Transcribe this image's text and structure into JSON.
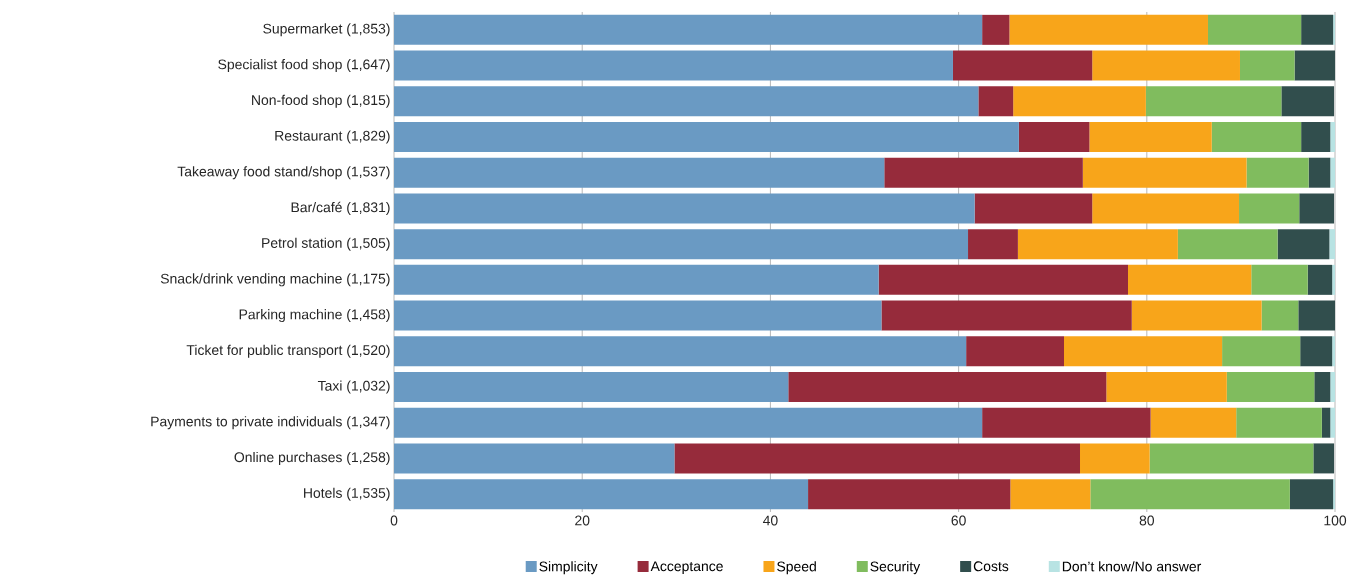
{
  "chart_data": {
    "type": "bar",
    "orientation": "horizontal",
    "stacked": true,
    "categories": [
      "Supermarket (1,853)",
      "Specialist food shop (1,647)",
      "Non-food shop (1,815)",
      "Restaurant (1,829)",
      "Takeaway food stand/shop (1,537)",
      "Bar/café (1,831)",
      "Petrol station (1,505)",
      "Snack/drink vending machine (1,175)",
      "Parking machine (1,458)",
      "Ticket for public transport (1,520)",
      "Taxi (1,032)",
      "Payments to private individuals (1,347)",
      "Online purchases (1,258)",
      "Hotels (1,535)"
    ],
    "series": [
      {
        "name": "Simplicity",
        "color": "#6a9ac3",
        "values": [
          62.5,
          59.4,
          62.1,
          66.4,
          52.1,
          61.7,
          61.0,
          51.5,
          51.8,
          60.8,
          41.9,
          62.5,
          29.8,
          44.0
        ]
      },
      {
        "name": "Acceptance",
        "color": "#962b3b",
        "values": [
          2.9,
          14.8,
          3.7,
          7.5,
          21.1,
          12.5,
          5.3,
          26.5,
          26.6,
          10.4,
          33.8,
          17.9,
          43.1,
          21.5
        ]
      },
      {
        "name": "Speed",
        "color": "#f8a51a",
        "values": [
          21.1,
          15.7,
          14.1,
          13.0,
          17.4,
          15.6,
          17.0,
          13.1,
          13.8,
          16.8,
          12.8,
          9.1,
          7.4,
          8.5
        ]
      },
      {
        "name": "Security",
        "color": "#80bc5e",
        "values": [
          9.9,
          5.8,
          14.4,
          9.5,
          6.6,
          6.4,
          10.6,
          6.0,
          3.9,
          8.3,
          9.3,
          9.1,
          17.4,
          21.2
        ]
      },
      {
        "name": "Costs",
        "color": "#314e4d",
        "values": [
          3.4,
          4.3,
          5.6,
          3.1,
          2.3,
          3.7,
          5.5,
          2.6,
          3.9,
          3.4,
          1.7,
          0.9,
          2.2,
          4.6
        ]
      },
      {
        "name": "Don’t know/No answer",
        "color": "#b8e3e3",
        "values": [
          0.2,
          0,
          null,
          0.5,
          0.5,
          null,
          0.6,
          0.3,
          0,
          0.3,
          0.5,
          0.5,
          null,
          0.2
        ]
      }
    ],
    "xlim": [
      0,
      100
    ],
    "xticks": [
      0,
      20,
      40,
      60,
      80,
      100
    ],
    "grid": "x",
    "legend": "bottom"
  }
}
